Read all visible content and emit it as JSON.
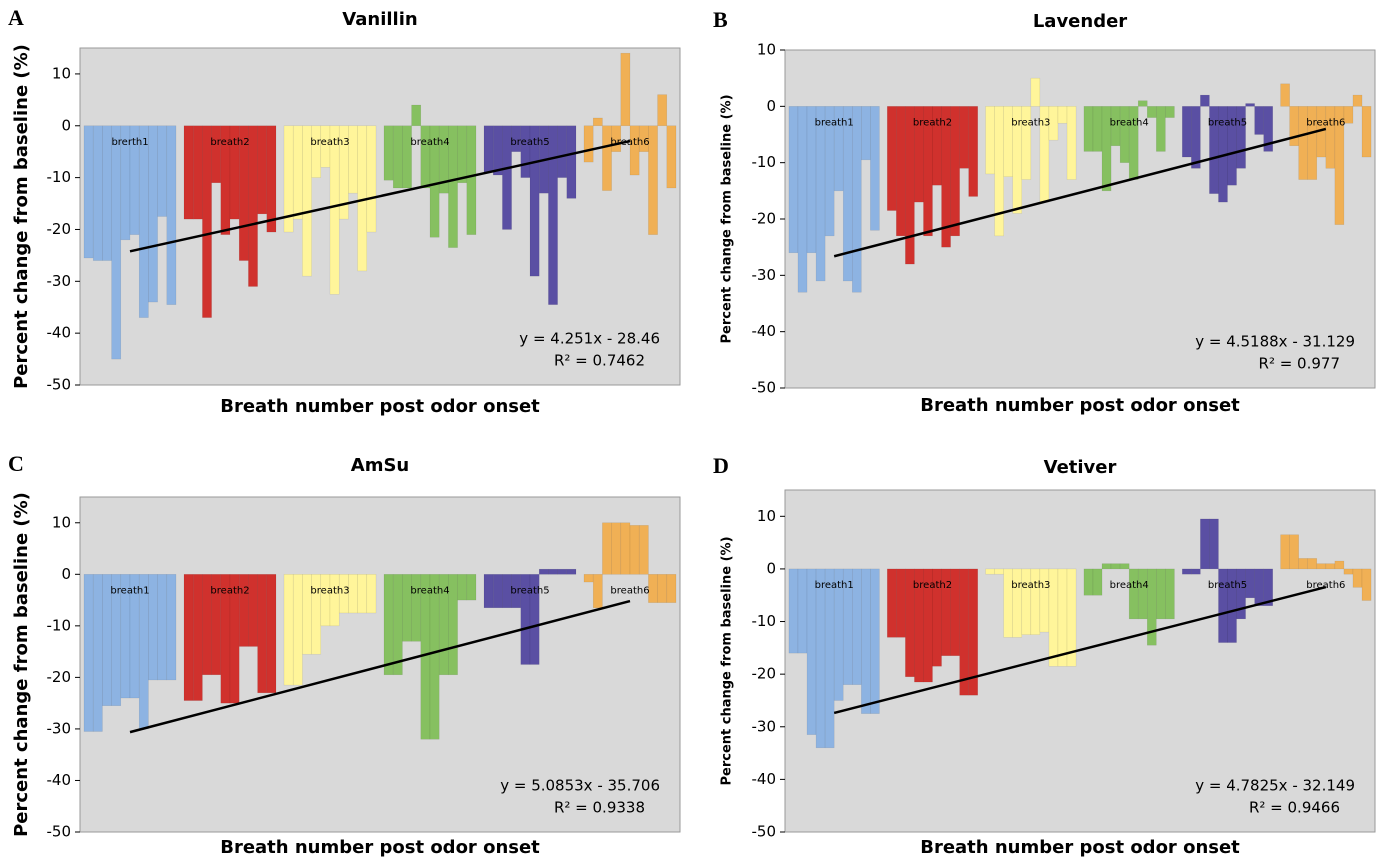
{
  "chart_data": [
    {
      "type": "bar",
      "panel": "A",
      "title": "Vanillin",
      "x_label": "Breath number post odor onset",
      "y_label": "Percent change from baseline (%)",
      "ylim": [
        -50,
        15
      ],
      "yticks": [
        -50,
        -40,
        -30,
        -20,
        -10,
        0,
        10
      ],
      "series": [
        {
          "name": "brerth1",
          "color": "#8db3e2",
          "values": [
            -25.5,
            -26,
            -26,
            -45,
            -22,
            -21,
            -37,
            -34,
            -17.5,
            -34.5
          ]
        },
        {
          "name": "breath2",
          "color": "#d0312d",
          "values": [
            -18,
            -18,
            -37,
            -11,
            -21,
            -18,
            -26,
            -31,
            -17,
            -20.5
          ]
        },
        {
          "name": "breath3",
          "color": "#fff59a",
          "values": [
            -20.5,
            -18,
            -29,
            -10,
            -8,
            -32.5,
            -18,
            -13,
            -28,
            -20.5
          ]
        },
        {
          "name": "breath4",
          "color": "#86c060",
          "values": [
            -10.5,
            -12,
            -12,
            4,
            -12,
            -21.5,
            -13,
            -23.5,
            -11,
            -21
          ]
        },
        {
          "name": "breath5",
          "color": "#5a4fa3",
          "values": [
            -9,
            -9.5,
            -20,
            -5,
            -10,
            -29,
            -13,
            -34.5,
            -10,
            -14
          ]
        },
        {
          "name": "breath6",
          "color": "#f0b055",
          "values": [
            -7,
            1.5,
            -12.5,
            -5,
            14,
            -9.5,
            -5,
            -21,
            6,
            -12
          ]
        }
      ],
      "trendline": {
        "slope": 4.251,
        "intercept": -28.46,
        "equation": "y = 4.251x - 28.46",
        "r_squared": "R² = 0.7462"
      }
    },
    {
      "type": "bar",
      "panel": "B",
      "title": "Lavender",
      "x_label": "Breath number post odor onset",
      "y_label": "Percent change from baseline (%)",
      "ylim": [
        -50,
        10
      ],
      "yticks": [
        -50,
        -40,
        -30,
        -20,
        -10,
        0,
        10
      ],
      "series": [
        {
          "name": "breath1",
          "color": "#8db3e2",
          "values": [
            -26,
            -33,
            -26,
            -31,
            -23,
            -15,
            -31,
            -33,
            -9.5,
            -22
          ]
        },
        {
          "name": "breath2",
          "color": "#d0312d",
          "values": [
            -18.5,
            -23,
            -28,
            -17,
            -23,
            -14,
            -25,
            -23,
            -11,
            -16
          ]
        },
        {
          "name": "breath3",
          "color": "#fff59a",
          "values": [
            -12,
            -23,
            -12.5,
            -19,
            -13,
            5,
            -17,
            -6,
            -3,
            -13
          ]
        },
        {
          "name": "breath4",
          "color": "#86c060",
          "values": [
            -8,
            -8,
            -15,
            -7,
            -10,
            -13,
            1,
            -2,
            -8,
            -2
          ]
        },
        {
          "name": "breath5",
          "color": "#5a4fa3",
          "values": [
            -9,
            -11,
            2,
            -15.5,
            -17,
            -14,
            -11,
            0.5,
            -5,
            -8
          ]
        },
        {
          "name": "breath6",
          "color": "#f0b055",
          "values": [
            4,
            -7,
            -13,
            -13,
            -9,
            -11,
            -21,
            -3,
            2,
            -9
          ]
        }
      ],
      "trendline": {
        "slope": 4.5188,
        "intercept": -31.129,
        "equation": "y = 4.5188x - 31.129",
        "r_squared": "R² = 0.977"
      }
    },
    {
      "type": "bar",
      "panel": "C",
      "title": "AmSu",
      "x_label": "Breath number post odor onset",
      "y_label": "Percent change from baseline (%)",
      "ylim": [
        -50,
        15
      ],
      "yticks": [
        -50,
        -40,
        -30,
        -20,
        -10,
        0,
        10
      ],
      "series": [
        {
          "name": "breath1",
          "color": "#8db3e2",
          "values": [
            -30.5,
            -30.5,
            -25.5,
            -25.5,
            -24,
            -24,
            -30,
            -20.5,
            -20.5,
            -20.5
          ]
        },
        {
          "name": "breath2",
          "color": "#d0312d",
          "values": [
            -24.5,
            -24.5,
            -19.5,
            -19.5,
            -25,
            -25,
            -14,
            -14,
            -23,
            -23
          ]
        },
        {
          "name": "breath3",
          "color": "#fff59a",
          "values": [
            -21.5,
            -21.5,
            -15.5,
            -15.5,
            -10,
            -10,
            -7.5,
            -7.5,
            -7.5,
            -7.5
          ]
        },
        {
          "name": "breath4",
          "color": "#86c060",
          "values": [
            -19.5,
            -19.5,
            -13,
            -13,
            -32,
            -32,
            -19.5,
            -19.5,
            -5,
            -5
          ]
        },
        {
          "name": "breath5",
          "color": "#5a4fa3",
          "values": [
            -6.5,
            -6.5,
            -6.5,
            -6.5,
            -17.5,
            -17.5,
            1,
            1,
            1,
            1
          ]
        },
        {
          "name": "breath6",
          "color": "#f0b055",
          "values": [
            -1.5,
            -6.5,
            10,
            10,
            10,
            9.5,
            9.5,
            -5.5,
            -5.5,
            -5.5
          ]
        }
      ],
      "trendline": {
        "slope": 5.0853,
        "intercept": -35.706,
        "equation": "y = 5.0853x - 35.706",
        "r_squared": "R² = 0.9338"
      }
    },
    {
      "type": "bar",
      "panel": "D",
      "title": "Vetiver",
      "x_label": "Breath number post odor onset",
      "y_label": "Percent change from baseline (%)",
      "ylim": [
        -50,
        15
      ],
      "yticks": [
        -50,
        -40,
        -30,
        -20,
        -10,
        0,
        10
      ],
      "series": [
        {
          "name": "breath1",
          "color": "#8db3e2",
          "values": [
            -16,
            -16,
            -31.5,
            -34,
            -34,
            -25,
            -22,
            -22,
            -27.5,
            -27.5
          ]
        },
        {
          "name": "breath2",
          "color": "#d0312d",
          "values": [
            -13,
            -13,
            -20.5,
            -21.5,
            -21.5,
            -18.5,
            -16.5,
            -16.5,
            -24,
            -24
          ]
        },
        {
          "name": "breath3",
          "color": "#fff59a",
          "values": [
            -1,
            -1,
            -13,
            -13,
            -12.5,
            -12.5,
            -12,
            -18.5,
            -18.5,
            -18.5
          ]
        },
        {
          "name": "breath4",
          "color": "#86c060",
          "values": [
            -5,
            -5,
            1,
            1,
            1,
            -9.5,
            -9.5,
            -14.5,
            -9.5,
            -9.5
          ]
        },
        {
          "name": "breath5",
          "color": "#5a4fa3",
          "values": [
            -1,
            -1,
            9.5,
            9.5,
            -14,
            -14,
            -9.5,
            -5.5,
            -7,
            -7
          ]
        },
        {
          "name": "breath6",
          "color": "#f0b055",
          "values": [
            6.5,
            6.5,
            2,
            2,
            1,
            1,
            1.5,
            -1,
            -3.5,
            -6
          ]
        }
      ],
      "trendline": {
        "slope": 4.7825,
        "intercept": -32.149,
        "equation": "y = 4.7825x - 32.149",
        "r_squared": "R² = 0.9466"
      }
    }
  ]
}
